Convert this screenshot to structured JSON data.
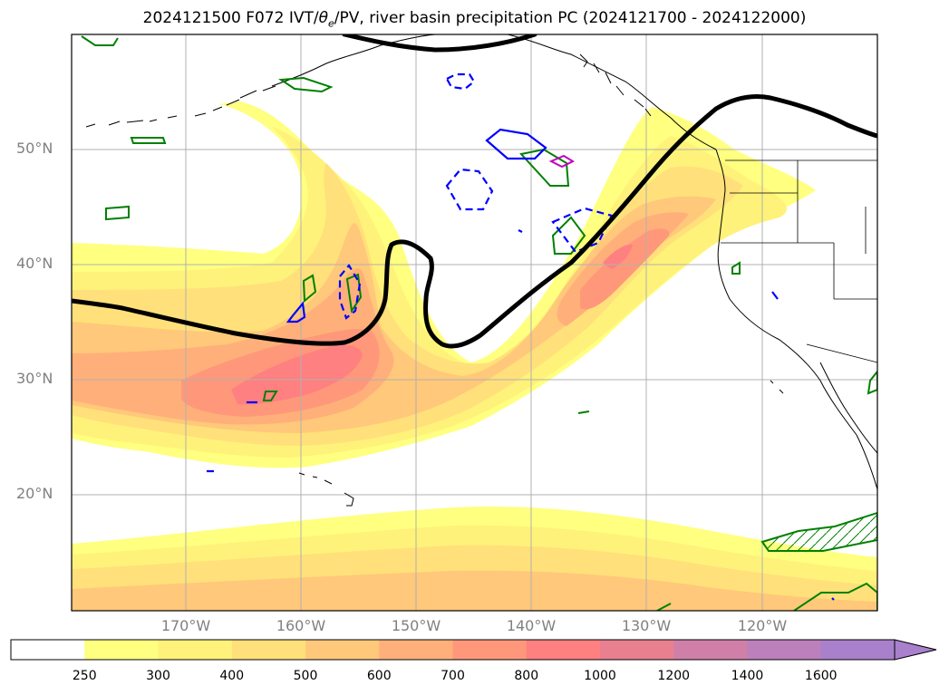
{
  "title": {
    "prefix": "2024121500 F072 IVT/",
    "theta": "θ",
    "theta_sub": "e",
    "suffix": "/PV, river basin precipitation PC (2024121700 - 2024122000)"
  },
  "map": {
    "lat_labels": [
      "50°N",
      "40°N",
      "30°N",
      "20°N"
    ],
    "lon_labels": [
      "170°W",
      "160°W",
      "150°W",
      "140°W",
      "130°W",
      "120°W"
    ]
  },
  "colorbar": {
    "tick_labels": [
      "250",
      "300",
      "400",
      "500",
      "600",
      "700",
      "800",
      "1000",
      "1200",
      "1400",
      "1600"
    ],
    "colors": [
      "#ffffff",
      "#ffff80",
      "#fff27a",
      "#ffe07a",
      "#ffc87a",
      "#ffb07a",
      "#ff987a",
      "#ff8080",
      "#e88090",
      "#d080a8",
      "#bc80bc",
      "#a880cc"
    ]
  },
  "contour_colors": {
    "pv_line": "#000000",
    "pc_positive": "#008000",
    "pc_negative": "#0000ff",
    "pc_extra": "#c000c0",
    "coastline": "#000000"
  }
}
